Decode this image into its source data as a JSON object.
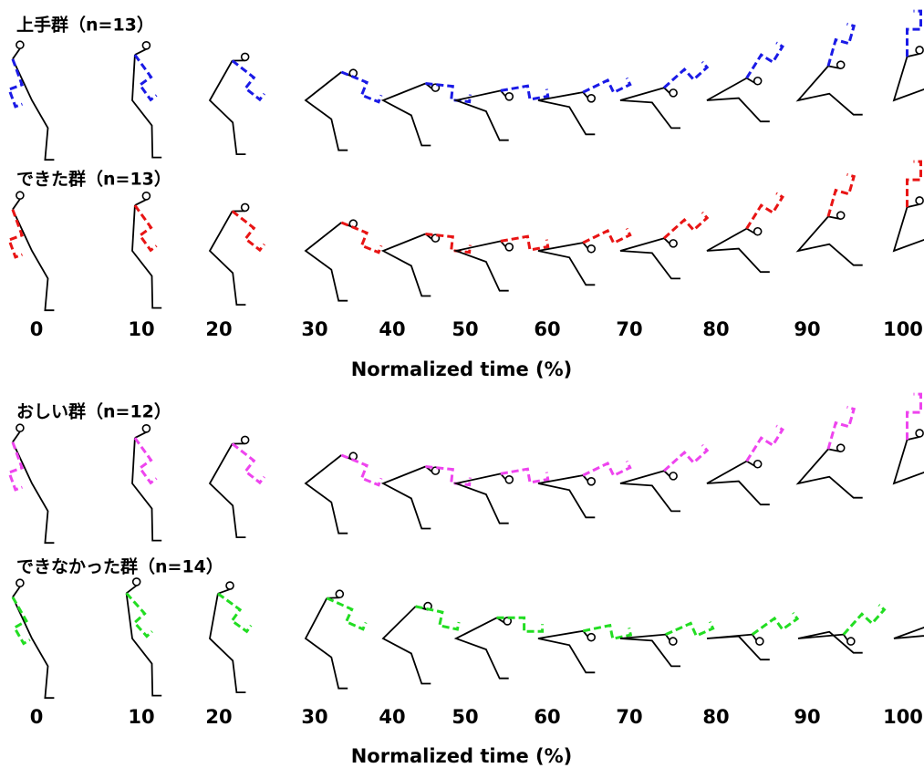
{
  "panels": [
    {
      "groups": [
        {
          "label": "上手群（n=13）"
        },
        {
          "label": "できた群（n=13）"
        }
      ],
      "ticks": [
        0,
        10,
        20,
        30,
        40,
        50,
        60,
        70,
        80,
        90,
        100
      ],
      "xlabel": "Normalized time (%)"
    },
    {
      "groups": [
        {
          "label": "おしい群（n=12）"
        },
        {
          "label": "できなかった群（n=14）"
        }
      ],
      "ticks": [
        0,
        10,
        20,
        30,
        40,
        50,
        60,
        70,
        80,
        90,
        100
      ],
      "xlabel": "Normalized time (%)"
    }
  ]
}
